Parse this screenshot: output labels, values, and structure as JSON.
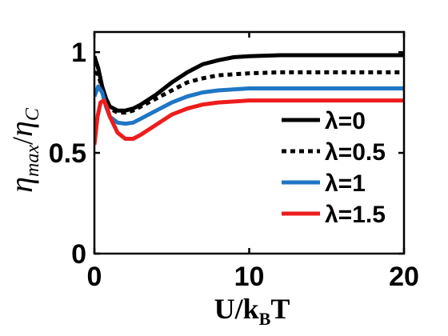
{
  "chart_data": {
    "type": "line",
    "xlabel": "U/k_B T",
    "xlabel_parts": {
      "main": "U/k",
      "sub": "B",
      "tail": "T"
    },
    "ylabel": "η_max / η_C",
    "ylabel_parts": {
      "eta": "η",
      "sub1": "max",
      "slash": "/",
      "sub2": "C"
    },
    "xlim": [
      0,
      20
    ],
    "ylim": [
      0,
      1.1
    ],
    "xticks": [
      0,
      10,
      20
    ],
    "yticks": [
      0,
      0.5,
      1
    ],
    "xtick_labels": [
      "0",
      "10",
      "20"
    ],
    "ytick_labels": [
      "0",
      "0.5",
      "1"
    ],
    "grid": false,
    "legend_position": "lower-right",
    "series": [
      {
        "name": "λ=0",
        "color": "#000000",
        "style": "solid",
        "x": [
          0,
          0.25,
          0.5,
          0.75,
          1.0,
          1.5,
          2.0,
          2.5,
          3.0,
          4.0,
          5.0,
          6.0,
          7.0,
          8.0,
          9.0,
          10.0,
          12.0,
          14.0,
          16.0,
          18.0,
          20.0
        ],
        "y": [
          0.98,
          0.92,
          0.83,
          0.77,
          0.73,
          0.71,
          0.71,
          0.72,
          0.74,
          0.79,
          0.85,
          0.9,
          0.94,
          0.96,
          0.975,
          0.98,
          0.985,
          0.985,
          0.985,
          0.985,
          0.985
        ]
      },
      {
        "name": "λ=0.5",
        "color": "#000000",
        "style": "dotted",
        "x": [
          0,
          0.25,
          0.5,
          0.75,
          1.0,
          1.5,
          2.0,
          2.5,
          3.0,
          4.0,
          5.0,
          6.0,
          7.0,
          8.0,
          9.0,
          10.0,
          12.0,
          14.0,
          16.0,
          18.0,
          20.0
        ],
        "y": [
          0.9,
          0.89,
          0.82,
          0.76,
          0.72,
          0.7,
          0.7,
          0.71,
          0.73,
          0.77,
          0.81,
          0.85,
          0.87,
          0.885,
          0.89,
          0.895,
          0.9,
          0.9,
          0.9,
          0.9,
          0.9
        ]
      },
      {
        "name": "λ=1",
        "color": "#1f77c4",
        "style": "solid",
        "x": [
          0,
          0.25,
          0.5,
          0.75,
          1.0,
          1.5,
          2.0,
          2.5,
          3.0,
          4.0,
          5.0,
          6.0,
          7.0,
          8.0,
          9.0,
          10.0,
          12.0,
          14.0,
          16.0,
          18.0,
          20.0
        ],
        "y": [
          0.78,
          0.83,
          0.8,
          0.73,
          0.68,
          0.65,
          0.645,
          0.65,
          0.67,
          0.71,
          0.75,
          0.78,
          0.8,
          0.81,
          0.815,
          0.82,
          0.82,
          0.82,
          0.82,
          0.82,
          0.82
        ]
      },
      {
        "name": "λ=1.5",
        "color": "#ee1c1c",
        "style": "solid",
        "x": [
          0,
          0.2,
          0.4,
          0.6,
          0.8,
          1.0,
          1.5,
          2.0,
          2.5,
          3.0,
          4.0,
          5.0,
          6.0,
          7.0,
          8.0,
          9.0,
          10.0,
          12.0,
          14.0,
          16.0,
          18.0,
          20.0
        ],
        "y": [
          0.54,
          0.68,
          0.75,
          0.76,
          0.73,
          0.68,
          0.6,
          0.57,
          0.57,
          0.59,
          0.64,
          0.69,
          0.72,
          0.74,
          0.75,
          0.755,
          0.76,
          0.76,
          0.76,
          0.76,
          0.76,
          0.76
        ]
      }
    ]
  }
}
